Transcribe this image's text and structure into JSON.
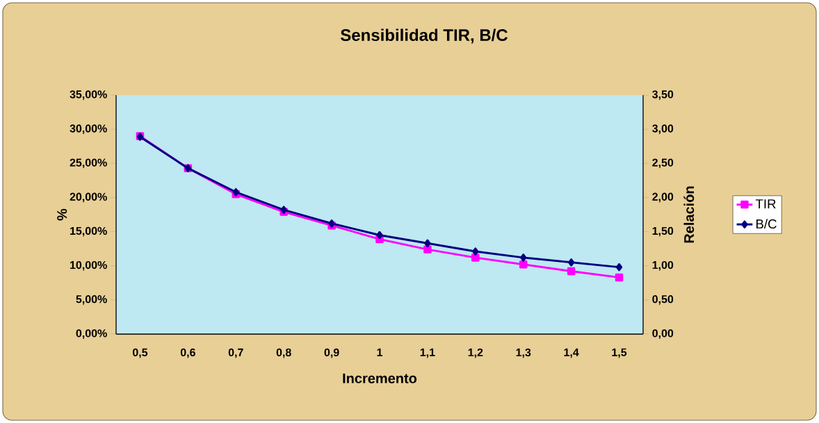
{
  "chart_data": {
    "type": "line",
    "title": "Sensibilidad TIR, B/C",
    "xlabel": "Incremento",
    "ylabel": "%",
    "y2label": "Relación",
    "categories": [
      "0,5",
      "0,6",
      "0,7",
      "0,8",
      "0,9",
      "1",
      "1,1",
      "1,2",
      "1,3",
      "1,4",
      "1,5"
    ],
    "series": [
      {
        "name": "TIR",
        "color": "#ff00ff",
        "marker": "square",
        "values": [
          29.0,
          24.3,
          20.5,
          17.9,
          15.9,
          13.9,
          12.4,
          11.2,
          10.2,
          9.2,
          8.3
        ]
      },
      {
        "name": "B/C",
        "color": "#000080",
        "marker": "diamond",
        "axis": "y2",
        "values": [
          2.89,
          2.43,
          2.08,
          1.82,
          1.62,
          1.45,
          1.33,
          1.21,
          1.12,
          1.05,
          0.98
        ]
      }
    ],
    "ylim": [
      0,
      35
    ],
    "yticks": [
      {
        "value": 0,
        "label": "0,00%"
      },
      {
        "value": 5,
        "label": "5,00%"
      },
      {
        "value": 10,
        "label": "10,00%"
      },
      {
        "value": 15,
        "label": "15,00%"
      },
      {
        "value": 20,
        "label": "20,00%"
      },
      {
        "value": 25,
        "label": "25,00%"
      },
      {
        "value": 30,
        "label": "30,00%"
      },
      {
        "value": 35,
        "label": "35,00%"
      }
    ],
    "y2lim": [
      0,
      3.5
    ],
    "y2ticks": [
      {
        "value": 0,
        "label": "0,00"
      },
      {
        "value": 0.5,
        "label": "0,50"
      },
      {
        "value": 1,
        "label": "1,00"
      },
      {
        "value": 1.5,
        "label": "1,50"
      },
      {
        "value": 2,
        "label": "2,00"
      },
      {
        "value": 2.5,
        "label": "2,50"
      },
      {
        "value": 3,
        "label": "3,00"
      },
      {
        "value": 3.5,
        "label": "3,50"
      }
    ],
    "grid": false,
    "legend": "right"
  }
}
